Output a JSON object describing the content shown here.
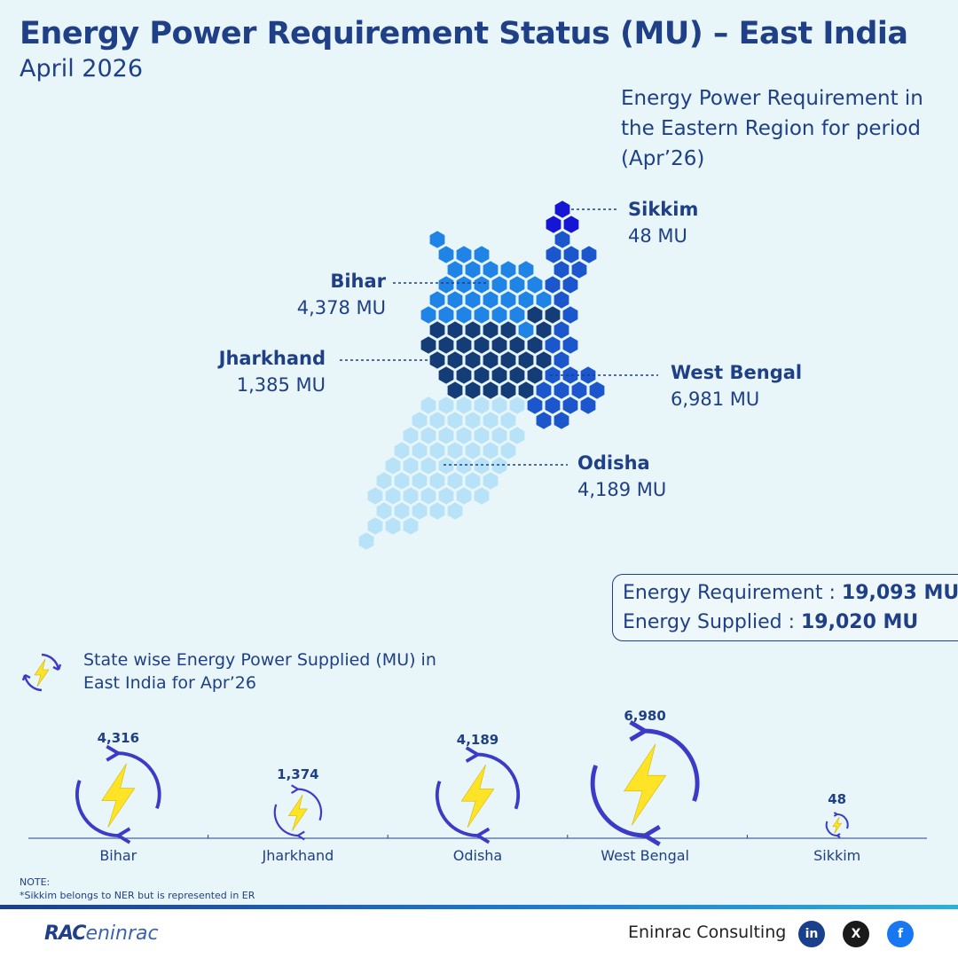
{
  "header": {
    "title": "Energy Power Requirement Status (MU) – East India",
    "subtitle": "April 2026"
  },
  "map": {
    "caption": "Energy Power Requirement in the Eastern Region for period (Apr’26)",
    "states": [
      {
        "name": "Sikkim",
        "value_label": "48 MU",
        "value": 48,
        "color": "#1515d6"
      },
      {
        "name": "Bihar",
        "value_label": "4,378 MU",
        "value": 4378,
        "color": "#1f84e6"
      },
      {
        "name": "Jharkhand",
        "value_label": "1,385 MU",
        "value": 1385,
        "color": "#143d78"
      },
      {
        "name": "West Bengal",
        "value_label": "6,981 MU",
        "value": 6981,
        "color": "#1c56cc"
      },
      {
        "name": "Odisha",
        "value_label": "4,189 MU",
        "value": 4189,
        "color": "#b8e2f8"
      }
    ]
  },
  "totals": {
    "requirement_label": "Energy Requirement :",
    "requirement_value": "19,093 MU",
    "supplied_label": "Energy Supplied :",
    "supplied_value": "19,020 MU"
  },
  "supply_caption": "State wise Energy Power Supplied (MU) in East India for Apr’26",
  "note": {
    "heading": "NOTE:",
    "text": "*Sikkim belongs to NER but is represented in ER"
  },
  "footer": {
    "logo_rac": "RAC",
    "logo_eninrac": "eninrac",
    "company": "Eninrac Consulting",
    "social_icons": [
      "linkedin-icon",
      "x-icon",
      "facebook-icon"
    ]
  },
  "chart_data": {
    "type": "bubble",
    "title": "State wise Energy Power Supplied (MU) in East India for Apr’26",
    "categories": [
      "Bihar",
      "Jharkhand",
      "Odisha",
      "West Bengal",
      "Sikkim"
    ],
    "values": [
      4316,
      1374,
      4189,
      6980,
      48
    ],
    "value_labels": [
      "4,316",
      "1,374",
      "4,189",
      "6,980",
      "48"
    ],
    "colors": {
      "ring": "#3b3bc8",
      "bolt": "#ffe326",
      "axis": "#1f3f86"
    },
    "legend": "none",
    "grid": false
  }
}
